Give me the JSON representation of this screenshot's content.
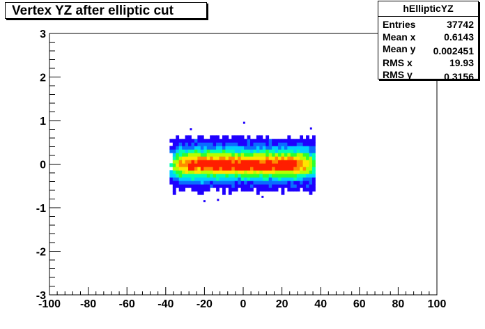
{
  "title": "Vertex YZ after elliptic cut",
  "stats": {
    "name": "hEllipticYZ",
    "rows": [
      {
        "label": "Entries",
        "value": "37742"
      },
      {
        "label": "Mean x",
        "value": "0.6143"
      },
      {
        "label": "Mean y",
        "value": "0.002451"
      },
      {
        "label": "RMS x",
        "value": "19.93"
      },
      {
        "label": "RMS y",
        "value": "0.3156"
      }
    ]
  },
  "chart_data": {
    "type": "heatmap",
    "title": "Vertex YZ after elliptic cut",
    "xlabel": "",
    "ylabel": "",
    "xlim": [
      -100,
      100
    ],
    "ylim": [
      -3,
      3
    ],
    "x_ticks": [
      "-100",
      "-80",
      "-60",
      "-40",
      "-20",
      "0",
      "20",
      "40",
      "60",
      "80",
      "100"
    ],
    "y_ticks": [
      "-3",
      "-2",
      "-1",
      "0",
      "1",
      "2",
      "3"
    ],
    "grid": false,
    "draw_option": "colz",
    "entries": 37742,
    "mean_x": 0.6143,
    "mean_y": 0.002451,
    "rms_x": 19.93,
    "rms_y": 0.3156,
    "distribution": {
      "x_range": [
        -38,
        38
      ],
      "y_range": [
        -0.7,
        0.7
      ]
    },
    "palette": [
      "#1f00ff",
      "#0a6cff",
      "#00cfff",
      "#00ffb0",
      "#2dff2d",
      "#b4ff00",
      "#ffe600",
      "#ff8a00",
      "#ff1e00"
    ]
  }
}
